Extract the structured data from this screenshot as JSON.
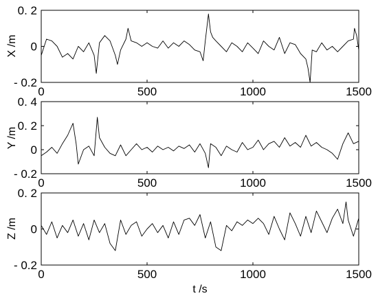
{
  "chart_data": [
    {
      "type": "line",
      "ylabel": "X /m",
      "xlabel": "",
      "xlim": [
        0,
        1500
      ],
      "ylim": [
        -0.2,
        0.2
      ],
      "x_ticks": [
        0,
        500,
        1000,
        1500
      ],
      "x_tick_labels": [
        "0",
        "500",
        "1000",
        "1500"
      ],
      "y_ticks": [
        -0.2,
        0,
        0.2
      ],
      "y_tick_labels": [
        "- 0.2",
        "0",
        "0. 2"
      ],
      "grid": false,
      "series": [
        {
          "color": "#000000",
          "x": [
            0,
            25,
            50,
            75,
            100,
            125,
            150,
            175,
            200,
            225,
            250,
            260,
            275,
            300,
            325,
            350,
            360,
            375,
            400,
            410,
            425,
            450,
            475,
            500,
            525,
            550,
            575,
            600,
            625,
            650,
            675,
            700,
            725,
            750,
            765,
            775,
            790,
            800,
            810,
            825,
            850,
            875,
            900,
            925,
            950,
            975,
            1000,
            1025,
            1050,
            1075,
            1100,
            1125,
            1150,
            1175,
            1200,
            1225,
            1250,
            1260,
            1270,
            1280,
            1300,
            1325,
            1350,
            1375,
            1400,
            1425,
            1450,
            1475,
            1480,
            1490,
            1500
          ],
          "y": [
            -0.05,
            0.04,
            0.03,
            0.0,
            -0.06,
            -0.04,
            -0.07,
            0.0,
            -0.03,
            0.02,
            -0.05,
            -0.15,
            0.02,
            0.06,
            0.03,
            -0.05,
            -0.1,
            -0.02,
            0.04,
            0.1,
            0.03,
            0.02,
            0.0,
            0.02,
            0.0,
            -0.01,
            0.03,
            -0.01,
            0.02,
            0.0,
            0.03,
            0.01,
            -0.02,
            -0.03,
            -0.08,
            0.03,
            0.18,
            0.08,
            0.05,
            0.03,
            0.0,
            -0.03,
            0.02,
            0.0,
            -0.03,
            0.02,
            -0.01,
            -0.04,
            0.03,
            0.0,
            -0.02,
            0.05,
            -0.04,
            0.02,
            0.01,
            -0.04,
            -0.07,
            -0.12,
            -0.2,
            -0.02,
            -0.03,
            0.02,
            -0.02,
            0.0,
            -0.03,
            0.0,
            0.03,
            0.04,
            0.1,
            0.06,
            -0.02
          ]
        }
      ]
    },
    {
      "type": "line",
      "ylabel": "Y /m",
      "xlabel": "",
      "xlim": [
        0,
        1500
      ],
      "ylim": [
        -0.2,
        0.4
      ],
      "x_ticks": [
        0,
        500,
        1000,
        1500
      ],
      "x_tick_labels": [
        "0",
        "500",
        "1000",
        "1500"
      ],
      "y_ticks": [
        -0.2,
        0,
        0.2,
        0.4
      ],
      "y_tick_labels": [
        "- 0.2",
        "0",
        "0. 2",
        "0. 4"
      ],
      "grid": false,
      "series": [
        {
          "color": "#000000",
          "x": [
            0,
            25,
            50,
            75,
            100,
            125,
            150,
            165,
            175,
            200,
            225,
            250,
            265,
            275,
            300,
            325,
            350,
            375,
            400,
            425,
            450,
            475,
            500,
            525,
            550,
            575,
            600,
            625,
            650,
            675,
            700,
            725,
            750,
            775,
            790,
            800,
            825,
            850,
            875,
            900,
            925,
            950,
            975,
            1000,
            1025,
            1050,
            1075,
            1100,
            1125,
            1150,
            1175,
            1200,
            1225,
            1250,
            1275,
            1300,
            1325,
            1350,
            1375,
            1400,
            1425,
            1450,
            1475,
            1500
          ],
          "y": [
            -0.05,
            -0.02,
            0.02,
            -0.03,
            0.05,
            0.12,
            0.22,
            0.05,
            -0.12,
            0.0,
            0.03,
            -0.05,
            0.27,
            0.1,
            0.02,
            -0.03,
            -0.05,
            0.04,
            -0.05,
            0.0,
            0.05,
            0.0,
            0.02,
            -0.02,
            0.03,
            0.0,
            0.02,
            -0.01,
            0.03,
            0.01,
            0.04,
            -0.02,
            0.05,
            -0.03,
            -0.15,
            0.05,
            0.02,
            -0.05,
            0.03,
            0.0,
            -0.02,
            0.06,
            0.0,
            0.02,
            0.08,
            0.0,
            0.05,
            0.07,
            0.02,
            0.1,
            0.03,
            0.06,
            0.02,
            0.12,
            0.03,
            0.06,
            0.02,
            0.0,
            -0.03,
            -0.08,
            0.05,
            0.14,
            0.05,
            0.07
          ]
        }
      ]
    },
    {
      "type": "line",
      "ylabel": "Z /m",
      "xlabel": "t /s",
      "xlim": [
        0,
        1500
      ],
      "ylim": [
        -0.2,
        0.2
      ],
      "x_ticks": [
        0,
        500,
        1000,
        1500
      ],
      "x_tick_labels": [
        "0",
        "500",
        "1000",
        "1500"
      ],
      "y_ticks": [
        -0.2,
        0,
        0.2
      ],
      "y_tick_labels": [
        "- 0.2",
        "0",
        "0. 2"
      ],
      "grid": false,
      "series": [
        {
          "color": "#000000",
          "x": [
            0,
            25,
            50,
            75,
            100,
            125,
            150,
            175,
            200,
            225,
            250,
            275,
            300,
            325,
            350,
            375,
            400,
            425,
            450,
            475,
            500,
            525,
            550,
            575,
            600,
            625,
            650,
            675,
            700,
            725,
            750,
            775,
            800,
            825,
            850,
            875,
            900,
            925,
            950,
            975,
            1000,
            1025,
            1050,
            1075,
            1100,
            1125,
            1150,
            1175,
            1200,
            1225,
            1250,
            1275,
            1300,
            1325,
            1350,
            1375,
            1400,
            1425,
            1440,
            1450,
            1475,
            1500
          ],
          "y": [
            0.02,
            -0.03,
            0.04,
            -0.05,
            0.02,
            -0.02,
            0.05,
            -0.04,
            0.03,
            -0.06,
            0.05,
            -0.02,
            0.03,
            -0.08,
            -0.12,
            0.05,
            -0.03,
            0.02,
            0.04,
            -0.04,
            0.0,
            0.03,
            -0.02,
            0.02,
            -0.05,
            0.04,
            -0.03,
            0.05,
            0.06,
            0.02,
            0.08,
            -0.05,
            0.04,
            -0.1,
            -0.12,
            0.02,
            -0.01,
            0.04,
            0.02,
            0.05,
            0.03,
            0.06,
            0.03,
            -0.03,
            0.07,
            0.0,
            -0.06,
            0.09,
            0.03,
            -0.04,
            0.07,
            -0.02,
            0.1,
            0.04,
            -0.02,
            0.06,
            0.11,
            0.03,
            0.15,
            0.05,
            -0.04,
            0.06
          ]
        }
      ]
    }
  ]
}
